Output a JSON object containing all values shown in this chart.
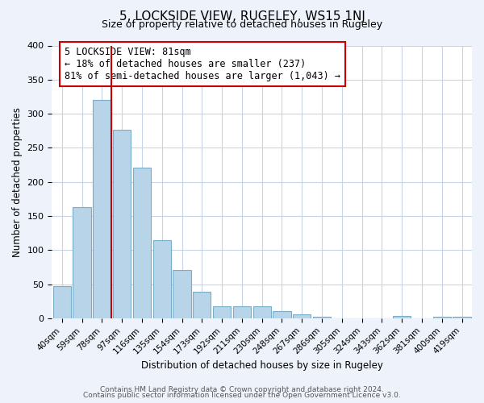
{
  "title": "5, LOCKSIDE VIEW, RUGELEY, WS15 1NJ",
  "subtitle": "Size of property relative to detached houses in Rugeley",
  "xlabel": "Distribution of detached houses by size in Rugeley",
  "ylabel": "Number of detached properties",
  "bar_labels": [
    "40sqm",
    "59sqm",
    "78sqm",
    "97sqm",
    "116sqm",
    "135sqm",
    "154sqm",
    "173sqm",
    "192sqm",
    "211sqm",
    "230sqm",
    "248sqm",
    "267sqm",
    "286sqm",
    "305sqm",
    "324sqm",
    "343sqm",
    "362sqm",
    "381sqm",
    "400sqm",
    "419sqm"
  ],
  "bar_values": [
    47,
    163,
    320,
    276,
    221,
    114,
    71,
    39,
    18,
    18,
    17,
    10,
    6,
    2,
    0,
    0,
    0,
    3,
    0,
    2,
    2
  ],
  "bar_color": "#b8d4e8",
  "bar_edge_color": "#7aaec8",
  "highlight_line_index": 2,
  "highlight_color": "#cc0000",
  "ylim": [
    0,
    400
  ],
  "yticks": [
    0,
    50,
    100,
    150,
    200,
    250,
    300,
    350,
    400
  ],
  "annotation_box_text": "5 LOCKSIDE VIEW: 81sqm\n← 18% of detached houses are smaller (237)\n81% of semi-detached houses are larger (1,043) →",
  "footer_line1": "Contains HM Land Registry data © Crown copyright and database right 2024.",
  "footer_line2": "Contains public sector information licensed under the Open Government Licence v3.0.",
  "bg_color": "#eef2fa",
  "plot_bg_color": "#ffffff",
  "grid_color": "#c8d4e8",
  "title_fontsize": 11,
  "subtitle_fontsize": 9,
  "annotation_fontsize": 8.5,
  "footer_fontsize": 6.5
}
